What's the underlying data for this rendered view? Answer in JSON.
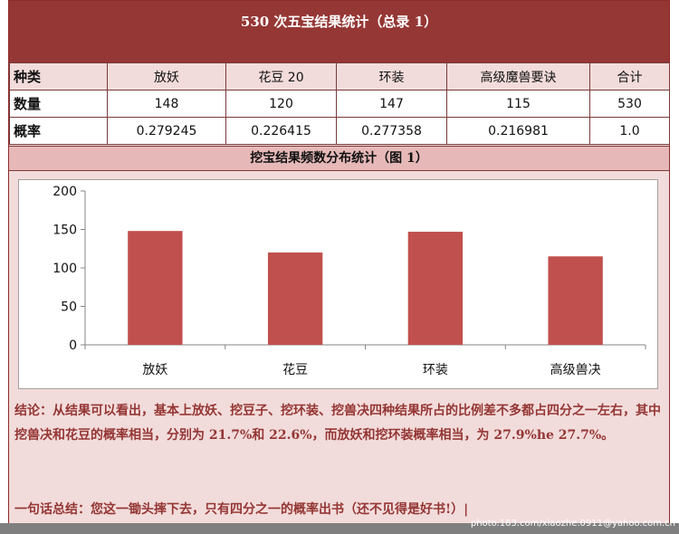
{
  "title": "530 次五宝结果统计（总录 1）",
  "table": {
    "headers": [
      "种类",
      "放妖",
      "花豆 20",
      "环装",
      "高级魔兽要诀",
      "合计"
    ],
    "rows": [
      [
        "数量",
        "148",
        "120",
        "147",
        "115",
        "530"
      ],
      [
        "概率",
        "0.279245",
        "0.226415",
        "0.277358",
        "0.216981",
        "1.0"
      ]
    ]
  },
  "subtitle": "挖宝结果频数分布统计（图 1）",
  "chart_data": {
    "type": "bar",
    "categories": [
      "放妖",
      "花豆",
      "环装",
      "高级兽决"
    ],
    "values": [
      148,
      120,
      147,
      115
    ],
    "ylim": [
      0,
      200
    ],
    "yticks": [
      0,
      50,
      100,
      150,
      200
    ],
    "grid": false,
    "bar_color": "#c0504d"
  },
  "conclusion": "结论：从结果可以看出，基本上放妖、挖豆子、挖环装、挖兽决四种结果所占的比例差不多都占四分之一左右，其中挖兽决和花豆的概率相当，分别为 21.7%和 22.6%，而放妖和挖环装概率相当，为 27.9%he 27.7%。",
  "summary": "一句话总结：您这一锄头摔下去，只有四分之一的概率出书（还不见得是好书!）|",
  "watermark": "photo.163.com/xiaozhe.0911@yahoo.com.cn",
  "colors": {
    "title_bg": "#953735",
    "panel_bg": "#f2dcdb",
    "subtitle_bg": "#e6b9b8",
    "text_red": "#943634"
  }
}
